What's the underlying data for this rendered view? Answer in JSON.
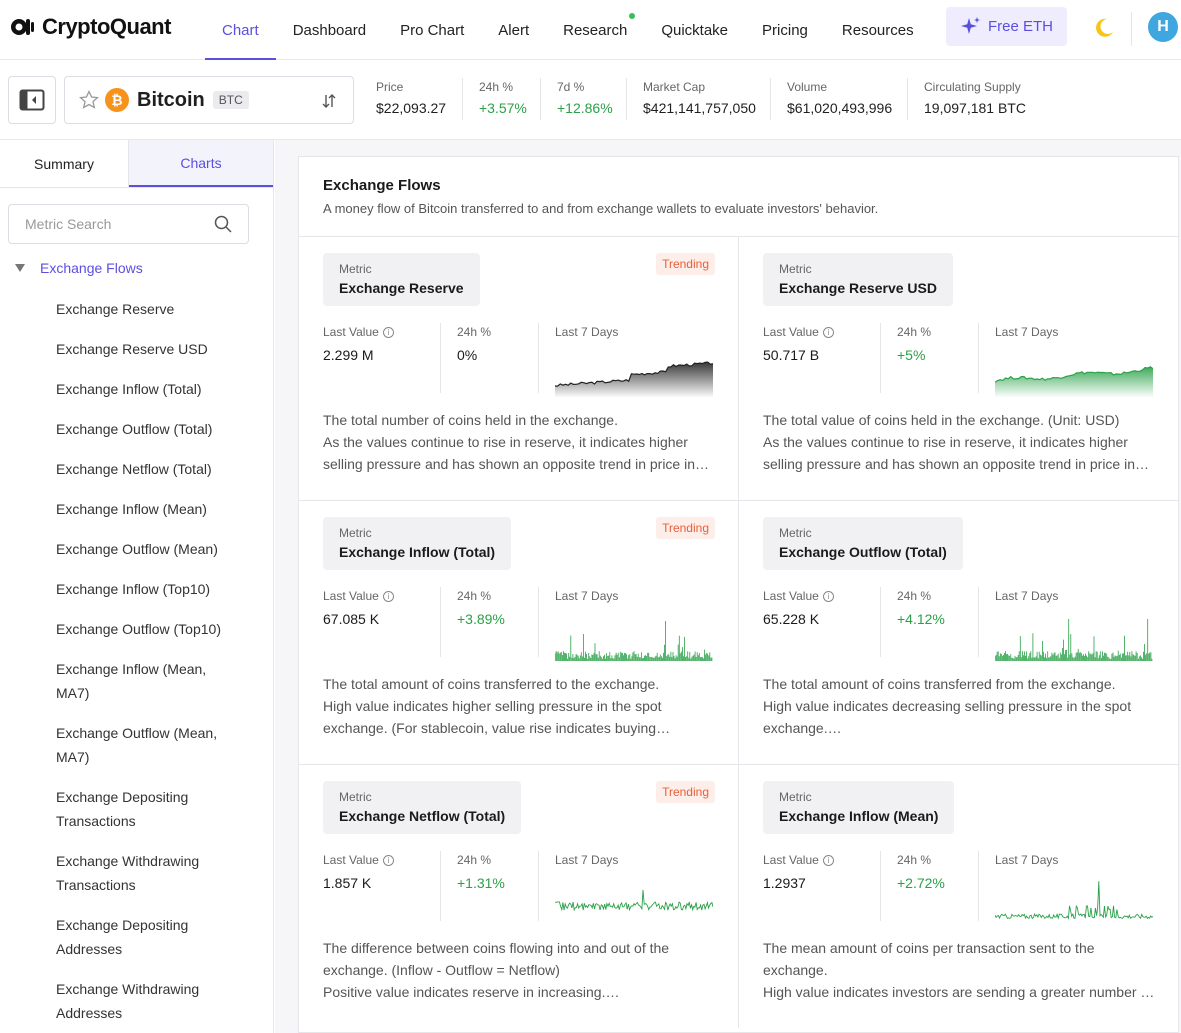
{
  "brand": {
    "name": "CryptoQuant"
  },
  "nav": {
    "items": [
      {
        "label": "Chart"
      },
      {
        "label": "Dashboard"
      },
      {
        "label": "Pro Chart"
      },
      {
        "label": "Alert"
      },
      {
        "label": "Research"
      },
      {
        "label": "Quicktake"
      },
      {
        "label": "Pricing"
      },
      {
        "label": "Resources"
      }
    ],
    "free_eth_label": "Free ETH",
    "avatar_initial": "H"
  },
  "asset": {
    "name": "Bitcoin",
    "ticker": "BTC",
    "stats": [
      {
        "label": "Price",
        "value": "$22,093.27"
      },
      {
        "label": "24h %",
        "value": "+3.57%"
      },
      {
        "label": "7d %",
        "value": "+12.86%"
      },
      {
        "label": "Market Cap",
        "value": "$421,141,757,050"
      },
      {
        "label": "Volume",
        "value": "$61,020,493,996"
      },
      {
        "label": "Circulating Supply",
        "value": "19,097,181 BTC"
      }
    ]
  },
  "sidebar": {
    "tabs": [
      {
        "label": "Summary"
      },
      {
        "label": "Charts"
      }
    ],
    "search_placeholder": "Metric Search",
    "group_label": "Exchange Flows",
    "items": [
      "Exchange Reserve",
      "Exchange Reserve USD",
      "Exchange Inflow (Total)",
      "Exchange Outflow (Total)",
      "Exchange Netflow (Total)",
      "Exchange Inflow (Mean)",
      "Exchange Outflow (Mean)",
      "Exchange Inflow (Top10)",
      "Exchange Outflow (Top10)",
      "Exchange Inflow (Mean, MA7)",
      "Exchange Outflow (Mean, MA7)",
      "Exchange Depositing Transactions",
      "Exchange Withdrawing Transactions",
      "Exchange Depositing Addresses",
      "Exchange Withdrawing Addresses"
    ]
  },
  "main": {
    "title": "Exchange Flows",
    "description": "A money flow of Bitcoin transferred to and from exchange wallets to evaluate investors' behavior.",
    "labels": {
      "metric": "Metric",
      "last_value": "Last Value",
      "pct_24h": "24h %",
      "last_7_days": "Last 7 Days",
      "trending": "Trending"
    },
    "cards": [
      {
        "metric": "Exchange Reserve",
        "last_value": "2.299 M",
        "pct_24h": "0%",
        "trending": true,
        "desc_lines": [
          "The total number of coins held in the exchange.",
          "As the values continue to rise in reserve, it indicates higher",
          "selling pressure and has shown an opposite trend in price in…"
        ]
      },
      {
        "metric": "Exchange Reserve USD",
        "last_value": "50.717 B",
        "pct_24h": "+5%",
        "trending": false,
        "desc_lines": [
          "The total value of coins held in the exchange. (Unit: USD)",
          "As the values continue to rise in reserve, it indicates higher",
          "selling pressure and has shown an opposite trend in price in…"
        ]
      },
      {
        "metric": "Exchange Inflow (Total)",
        "last_value": "67.085 K",
        "pct_24h": "+3.89%",
        "trending": true,
        "desc_lines": [
          "The total amount of coins transferred to the exchange.",
          "High value indicates higher selling pressure in the spot",
          "exchange. (For stablecoin, value rise indicates buying…"
        ]
      },
      {
        "metric": "Exchange Outflow (Total)",
        "last_value": "65.228 K",
        "pct_24h": "+4.12%",
        "trending": false,
        "desc_lines": [
          "The total amount of coins transferred from the exchange.",
          "High value indicates decreasing selling pressure in the spot",
          "exchange.…"
        ]
      },
      {
        "metric": "Exchange Netflow (Total)",
        "last_value": "1.857 K",
        "pct_24h": "+1.31%",
        "trending": true,
        "desc_lines": [
          "The difference between coins flowing into and out of the",
          "exchange. (Inflow - Outflow = Netflow)",
          "Positive value indicates reserve in increasing.…"
        ]
      },
      {
        "metric": "Exchange Inflow (Mean)",
        "last_value": "1.2937",
        "pct_24h": "+2.72%",
        "trending": false,
        "desc_lines": [
          "The mean amount of coins per transaction sent to the",
          "exchange.",
          "High value indicates investors are sending a greater number …"
        ]
      }
    ]
  },
  "colors": {
    "accent": "#5b4fe0",
    "positive": "#2aa148",
    "trending": "#e8603c",
    "bitcoin": "#f7931a"
  }
}
